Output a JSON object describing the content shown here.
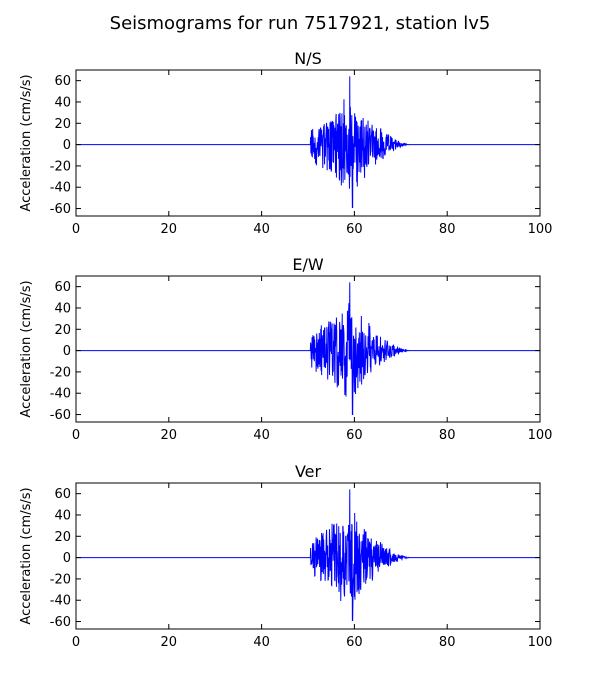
{
  "figure": {
    "title": "Seismograms for run 7517921, station lv5"
  },
  "chart_data": [
    {
      "type": "line",
      "title": "N/S",
      "xlabel": "",
      "ylabel": "Acceleration (cm/s/s)",
      "xlim": [
        0,
        100
      ],
      "ylim": [
        -67,
        70
      ],
      "xticks": [
        0,
        20,
        40,
        60,
        80,
        100
      ],
      "yticks": [
        -60,
        -40,
        -20,
        0,
        20,
        40,
        60
      ],
      "grid": false,
      "color": "#0000ff",
      "signal": {
        "onset": 50.5,
        "peak_time": 59,
        "end": 72,
        "peak_amplitude": 64,
        "min_amplitude": -59,
        "seed": 11
      }
    },
    {
      "type": "line",
      "title": "E/W",
      "xlabel": "",
      "ylabel": "Acceleration (cm/s/s)",
      "xlim": [
        0,
        100
      ],
      "ylim": [
        -67,
        70
      ],
      "xticks": [
        0,
        20,
        40,
        60,
        80,
        100
      ],
      "yticks": [
        -60,
        -40,
        -20,
        0,
        20,
        40,
        60
      ],
      "grid": false,
      "color": "#0000ff",
      "signal": {
        "onset": 50.5,
        "peak_time": 59,
        "end": 72,
        "peak_amplitude": 64,
        "min_amplitude": -60,
        "seed": 23
      }
    },
    {
      "type": "line",
      "title": "Ver",
      "xlabel": "",
      "ylabel": "Acceleration (cm/s/s)",
      "xlim": [
        0,
        100
      ],
      "ylim": [
        -67,
        70
      ],
      "xticks": [
        0,
        20,
        40,
        60,
        80,
        100
      ],
      "yticks": [
        -60,
        -40,
        -20,
        0,
        20,
        40,
        60
      ],
      "grid": false,
      "color": "#0000ff",
      "signal": {
        "onset": 50.5,
        "peak_time": 59,
        "end": 72,
        "peak_amplitude": 64,
        "min_amplitude": -59,
        "seed": 37
      }
    }
  ]
}
